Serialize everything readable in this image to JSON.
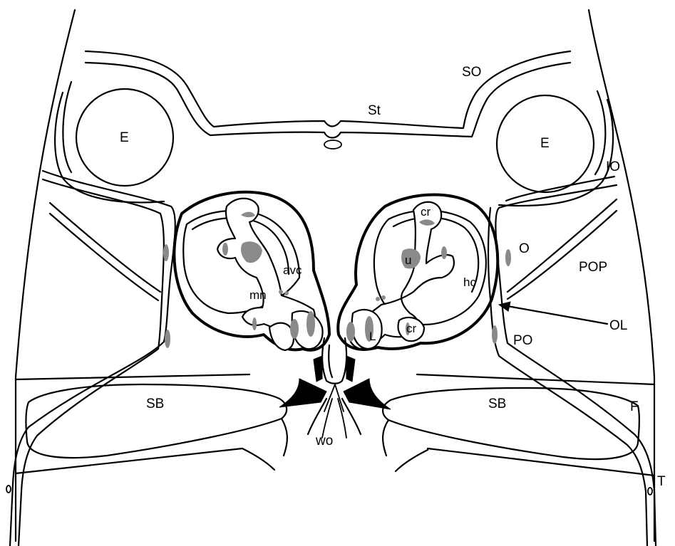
{
  "labels": {
    "SO": "SO",
    "St": "St",
    "E_left": "E",
    "E_right": "E",
    "IO": "IO",
    "O": "O",
    "POP": "POP",
    "OL": "OL",
    "PO": "PO",
    "F": "F",
    "T": "T",
    "SB_left": "SB",
    "SB_right": "SB",
    "wo": "wo",
    "cr_top": "cr",
    "cr_bottom": "cr",
    "u": "u",
    "hc": "hc",
    "L": "L",
    "avc": "avc",
    "mn": "mn"
  },
  "colors": {
    "line": "#000000",
    "macula": "#8a8a8a",
    "background": "#ffffff"
  }
}
